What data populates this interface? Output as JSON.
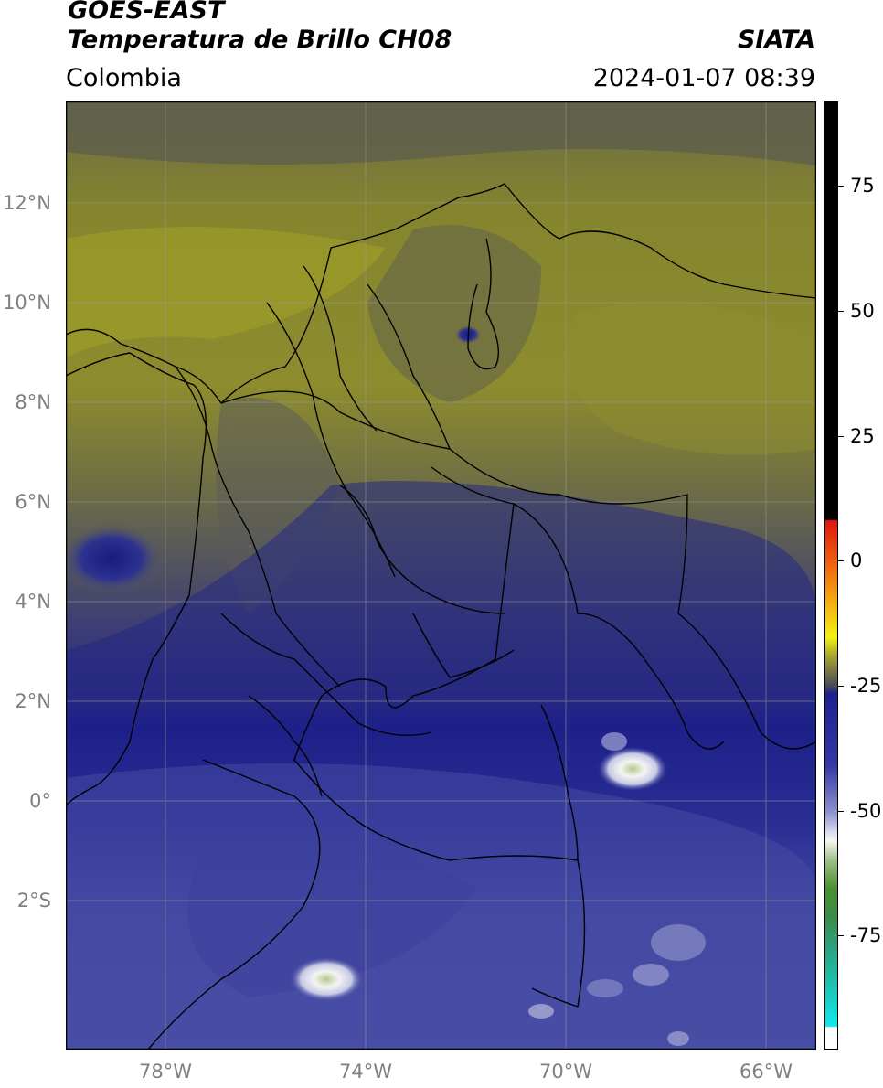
{
  "header": {
    "satellite": "GOES-EAST",
    "product": "Temperatura de Brillo CH08",
    "region": "Colombia",
    "agency": "SIATA",
    "datetime": "2024-01-07 08:39"
  },
  "map": {
    "lat_labels": [
      "12°N",
      "10°N",
      "8°N",
      "6°N",
      "4°N",
      "2°N",
      "0°",
      "2°S"
    ],
    "lon_labels": [
      "78°W",
      "74°W",
      "70°W",
      "66°W"
    ],
    "extent": {
      "lon_min": -80.0,
      "lon_max": -65.0,
      "lat_min": -4.8,
      "lat_max": 14.0
    },
    "gridlines": true
  },
  "colorbar": {
    "ticks": [
      "75",
      "50",
      "25",
      "0",
      "-25",
      "-50",
      "-75"
    ],
    "tick_values": [
      75,
      50,
      25,
      0,
      -25,
      -50,
      -75
    ],
    "range": [
      -100,
      90
    ]
  },
  "colors": {
    "yellow_olive": "#9e9d2a",
    "gray_olive": "#5e5d48",
    "navy": "#1c1f86",
    "slate_blue": "#4b50a6"
  }
}
